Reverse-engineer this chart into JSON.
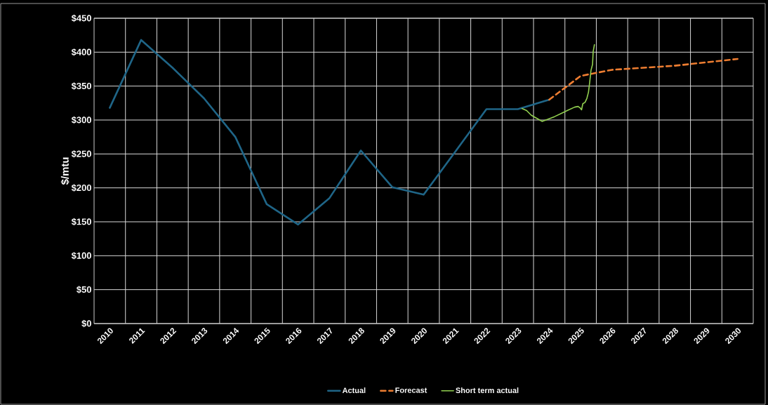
{
  "chart_data": {
    "type": "line",
    "ylabel": "$/mtu",
    "xlim": [
      2009.5,
      2030.5
    ],
    "xticks": [
      2010,
      2011,
      2012,
      2013,
      2014,
      2015,
      2016,
      2017,
      2018,
      2019,
      2020,
      2021,
      2022,
      2023,
      2024,
      2025,
      2026,
      2027,
      2028,
      2029,
      2030
    ],
    "ylim": [
      0,
      450
    ],
    "yticks": [
      {
        "value": 0,
        "label": "$0"
      },
      {
        "value": 50,
        "label": "$50"
      },
      {
        "value": 100,
        "label": "$100"
      },
      {
        "value": 150,
        "label": "$150"
      },
      {
        "value": 200,
        "label": "$200"
      },
      {
        "value": 250,
        "label": "$250"
      },
      {
        "value": 300,
        "label": "$300"
      },
      {
        "value": 350,
        "label": "$350"
      },
      {
        "value": 400,
        "label": "$400"
      },
      {
        "value": 450,
        "label": "$450"
      }
    ],
    "grid": true,
    "legend": "bottom",
    "marker": "none",
    "series": [
      {
        "name": "Actual",
        "color": "#1f6587",
        "line_style": "solid",
        "x": [
          2010,
          2011,
          2012,
          2013,
          2014,
          2015,
          2016,
          2017,
          2018,
          2019,
          2020,
          2021,
          2022,
          2023,
          2024
        ],
        "values": [
          318,
          418,
          377,
          332,
          275,
          176,
          146,
          185,
          255,
          201,
          190,
          253,
          316,
          316,
          330
        ]
      },
      {
        "name": "Forecast",
        "color": "#ed7d31",
        "line_style": "dashed",
        "x": [
          2024,
          2025,
          2026,
          2027,
          2028,
          2029,
          2030
        ],
        "values": [
          330,
          365,
          374,
          377,
          380,
          385,
          390
        ]
      },
      {
        "name": "Short term actual",
        "color": "#92d050",
        "line_style": "solid",
        "x": [
          2023.13,
          2023.28,
          2023.43,
          2023.62,
          2023.77,
          2023.95,
          2024.17,
          2024.4,
          2024.62,
          2024.81,
          2024.92,
          2024.98,
          2025.03,
          2025.07,
          2025.14,
          2025.2,
          2025.25,
          2025.29,
          2025.33,
          2025.38,
          2025.4,
          2025.44
        ],
        "values": [
          317,
          314,
          307,
          302,
          298,
          301,
          305,
          310,
          315,
          319,
          320,
          318,
          315,
          324,
          326,
          332,
          341,
          356,
          373,
          382,
          401,
          411
        ]
      }
    ]
  }
}
